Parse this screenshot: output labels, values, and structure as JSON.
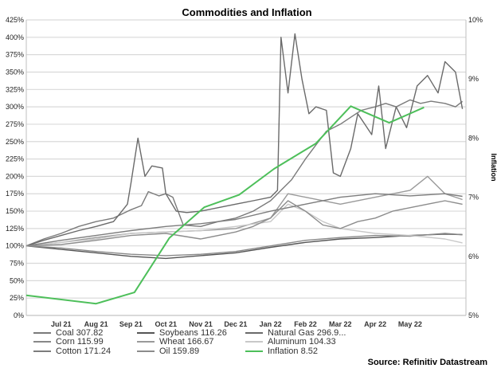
{
  "chart_data": {
    "type": "line",
    "title": "Commodities and Inflation",
    "source": "Source: Refinitiv Datastream",
    "y_left": {
      "label": "",
      "range": [
        0,
        425
      ],
      "ticks": [
        "0%",
        "25%",
        "50%",
        "75%",
        "100%",
        "125%",
        "150%",
        "175%",
        "200%",
        "225%",
        "250%",
        "275%",
        "300%",
        "325%",
        "350%",
        "375%",
        "400%",
        "425%"
      ],
      "tick_values": [
        0,
        25,
        50,
        75,
        100,
        125,
        150,
        175,
        200,
        225,
        250,
        275,
        300,
        325,
        350,
        375,
        400,
        425
      ]
    },
    "y_right": {
      "label": "Inflation",
      "range": [
        5,
        10
      ],
      "ticks": [
        "5%",
        "6%",
        "7%",
        "8%",
        "9%",
        "10%"
      ],
      "tick_values": [
        5,
        6,
        7,
        8,
        9,
        10
      ]
    },
    "x_ticks": [
      "Jul 21",
      "Aug 21",
      "Sep 21",
      "Oct 21",
      "Nov 21",
      "Dec 21",
      "Jan 22",
      "Feb 22",
      "Mar 22",
      "Apr 22",
      "May 22"
    ],
    "x_range": [
      0,
      12.6
    ],
    "grid": true,
    "legend_position": "bottom-left",
    "series": [
      {
        "name": "Coal 307.82",
        "color": "#7a7a7a",
        "axis": "left",
        "x": [
          0,
          0.5,
          1,
          1.5,
          2,
          2.5,
          3,
          3.3,
          3.5,
          3.8,
          4.0,
          4.2,
          4.5,
          5,
          5.5,
          6,
          6.5,
          7,
          7.3,
          7.6,
          7.8,
          8.0,
          8.3,
          8.6,
          9.0,
          9.3,
          9.6,
          10,
          10.3,
          10.6,
          11,
          11.3,
          11.6,
          12,
          12.3,
          12.5
        ],
        "values": [
          100,
          110,
          118,
          128,
          135,
          140,
          152,
          158,
          178,
          172,
          175,
          170,
          130,
          128,
          135,
          140,
          150,
          165,
          180,
          195,
          210,
          225,
          245,
          265,
          275,
          285,
          295,
          300,
          305,
          300,
          310,
          305,
          308,
          305,
          300,
          307.82
        ]
      },
      {
        "name": "Soybeans 116.26",
        "color": "#555555",
        "axis": "left",
        "x": [
          0,
          1,
          2,
          3,
          4,
          5,
          6,
          7,
          8,
          9,
          10,
          11,
          12,
          12.5
        ],
        "values": [
          100,
          95,
          90,
          85,
          82,
          86,
          90,
          98,
          105,
          110,
          112,
          115,
          117,
          116.26
        ]
      },
      {
        "name": "Natural Gas 296.9...",
        "color": "#6a6a6a",
        "axis": "left",
        "x": [
          0,
          0.5,
          1,
          1.5,
          2,
          2.5,
          2.9,
          3.0,
          3.2,
          3.4,
          3.6,
          3.9,
          4.0,
          4.3,
          4.6,
          5,
          5.5,
          6,
          6.5,
          7,
          7.2,
          7.3,
          7.5,
          7.7,
          7.9,
          8.1,
          8.3,
          8.6,
          8.8,
          9,
          9.3,
          9.5,
          9.7,
          9.9,
          10.1,
          10.3,
          10.6,
          10.9,
          11.2,
          11.5,
          11.8,
          12,
          12.3,
          12.5
        ],
        "values": [
          100,
          108,
          115,
          122,
          128,
          135,
          160,
          190,
          255,
          200,
          215,
          212,
          175,
          150,
          148,
          150,
          155,
          160,
          165,
          170,
          180,
          400,
          320,
          405,
          340,
          290,
          300,
          295,
          205,
          200,
          240,
          290,
          275,
          260,
          330,
          240,
          300,
          270,
          330,
          345,
          320,
          365,
          350,
          296.9
        ]
      },
      {
        "name": "Corn 115.99",
        "color": "#888888",
        "axis": "left",
        "x": [
          0,
          1,
          2,
          3,
          4,
          5,
          6,
          7,
          8,
          9,
          10,
          11,
          12,
          12.5
        ],
        "values": [
          100,
          97,
          92,
          88,
          86,
          88,
          92,
          100,
          108,
          112,
          115,
          114,
          118,
          115.99
        ]
      },
      {
        "name": "Wheat 166.67",
        "color": "#9a9a9a",
        "axis": "left",
        "x": [
          0,
          1,
          2,
          3,
          4,
          5,
          6,
          7,
          7.5,
          8,
          9,
          10,
          11,
          11.5,
          12,
          12.5
        ],
        "values": [
          100,
          105,
          112,
          118,
          120,
          122,
          125,
          140,
          175,
          170,
          160,
          170,
          180,
          200,
          175,
          166.67
        ]
      },
      {
        "name": "Aluminum 104.33",
        "color": "#c8c8c8",
        "axis": "left",
        "x": [
          0,
          1,
          2,
          3,
          4,
          5,
          6,
          7,
          7.5,
          8,
          8.5,
          9,
          10,
          11,
          12,
          12.5
        ],
        "values": [
          100,
          105,
          110,
          118,
          120,
          122,
          128,
          135,
          160,
          150,
          135,
          125,
          118,
          115,
          110,
          104.33
        ]
      },
      {
        "name": "Cotton 171.24",
        "color": "#7d7d7d",
        "axis": "left",
        "x": [
          0,
          1,
          2,
          3,
          4,
          5,
          6,
          7,
          8,
          9,
          10,
          11,
          12,
          12.5
        ],
        "values": [
          100,
          108,
          115,
          122,
          128,
          132,
          138,
          150,
          160,
          170,
          175,
          172,
          175,
          171.24
        ]
      },
      {
        "name": "Oil 159.89",
        "color": "#8c8c8c",
        "axis": "left",
        "x": [
          0,
          1,
          2,
          3,
          4,
          5,
          6,
          6.5,
          7,
          7.5,
          8,
          8.5,
          9,
          9.5,
          10,
          10.5,
          11,
          11.5,
          12,
          12.5
        ],
        "values": [
          100,
          102,
          108,
          115,
          118,
          110,
          120,
          128,
          140,
          165,
          150,
          130,
          125,
          135,
          140,
          150,
          155,
          160,
          165,
          159.89
        ]
      },
      {
        "name": "Inflation 8.52",
        "color": "#4dbf5a",
        "axis": "right",
        "x": [
          0,
          2,
          3.1,
          4.1,
          5.1,
          6.1,
          7.1,
          8.3,
          9.3,
          10.4,
          11.4
        ],
        "values": [
          5.34,
          5.2,
          5.39,
          6.31,
          6.83,
          7.04,
          7.48,
          7.91,
          8.54,
          8.26,
          8.52
        ]
      }
    ]
  }
}
